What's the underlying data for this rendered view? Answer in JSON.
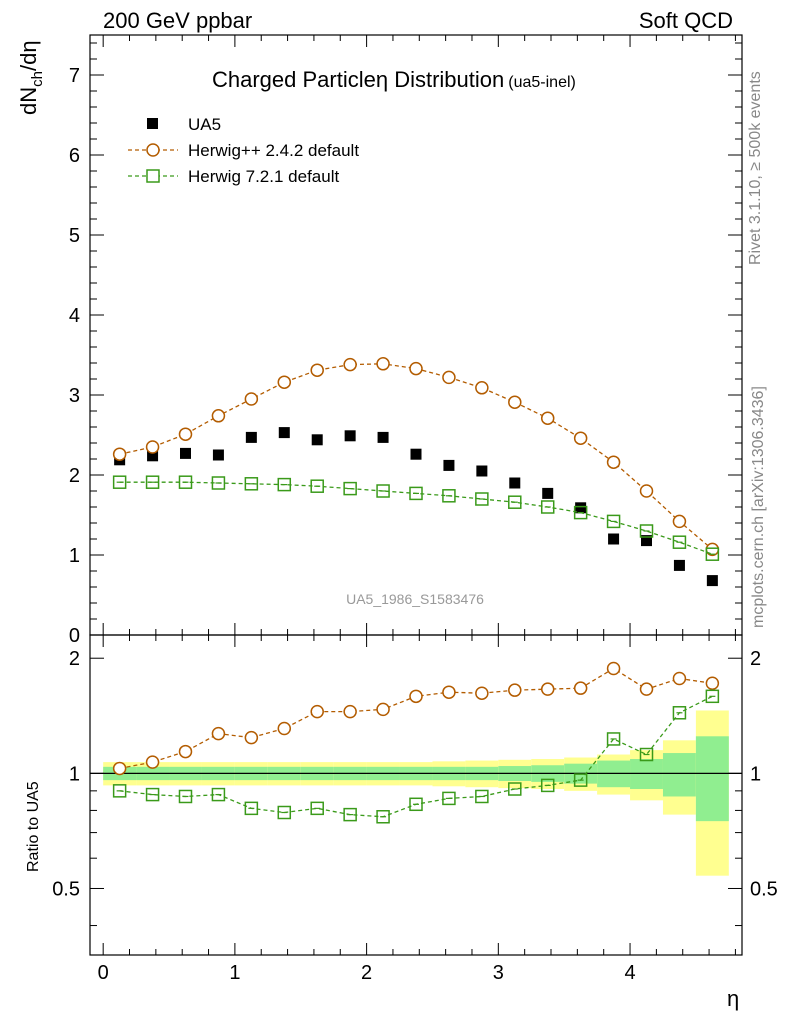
{
  "header": {
    "left": "200 GeV ppbar",
    "right": "Soft QCD"
  },
  "side_labels": {
    "rivet": "Rivet 3.1.10, ≥ 500k events",
    "mcplots": "mcplots.cern.ch [arXiv:1306.3436]"
  },
  "colors": {
    "data": "#000000",
    "herwigpp": "#b35c00",
    "herwig7": "#3a9a1a",
    "band_inner": "#90ee90",
    "band_outer": "#ffff90"
  },
  "chart_data": [
    {
      "type": "scatter",
      "title": "Charged Particleη Distribution",
      "subtitle": "(ua5-inel)",
      "ylabel": "dNch/dη",
      "ylabel_main": "dN",
      "ylabel_sub": "ch",
      "ylabel_tail": "/dη",
      "xlabel": "η",
      "annotation": "UA5_1986_S1583476",
      "xlim": [
        -0.1,
        4.85
      ],
      "ylim": [
        0,
        7.5
      ],
      "yticks": [
        0,
        1,
        2,
        3,
        4,
        5,
        6,
        7
      ],
      "x": [
        0.125,
        0.375,
        0.625,
        0.875,
        1.125,
        1.375,
        1.625,
        1.875,
        2.125,
        2.375,
        2.625,
        2.875,
        3.125,
        3.375,
        3.625,
        3.875,
        4.125,
        4.375,
        4.625
      ],
      "series": [
        {
          "name": "UA5",
          "marker": "filled-square",
          "values": [
            2.19,
            2.24,
            2.27,
            2.25,
            2.47,
            2.53,
            2.44,
            2.49,
            2.47,
            2.26,
            2.12,
            2.05,
            1.9,
            1.77,
            1.59,
            1.2,
            1.18,
            0.87,
            0.68
          ]
        },
        {
          "name": "Herwig++ 2.4.2 default",
          "marker": "open-circle",
          "values": [
            2.26,
            2.35,
            2.51,
            2.74,
            2.95,
            3.16,
            3.31,
            3.38,
            3.39,
            3.33,
            3.22,
            3.09,
            2.91,
            2.71,
            2.46,
            2.16,
            1.8,
            1.42,
            1.07
          ]
        },
        {
          "name": "Herwig 7.2.1 default",
          "marker": "open-square",
          "values": [
            1.91,
            1.91,
            1.91,
            1.9,
            1.89,
            1.88,
            1.86,
            1.83,
            1.8,
            1.77,
            1.74,
            1.7,
            1.66,
            1.6,
            1.53,
            1.42,
            1.3,
            1.16,
            1.01
          ]
        }
      ]
    },
    {
      "type": "line",
      "ylabel": "Ratio to UA5",
      "xlabel": "η",
      "xlim": [
        -0.1,
        4.85
      ],
      "ylim": [
        0.335,
        2.3
      ],
      "yticks": [
        0.5,
        1,
        2
      ],
      "ytick_labels": [
        "0.5",
        "1",
        "2"
      ],
      "xticks": [
        0,
        1,
        2,
        3,
        4
      ],
      "x": [
        0.125,
        0.375,
        0.625,
        0.875,
        1.125,
        1.375,
        1.625,
        1.875,
        2.125,
        2.375,
        2.625,
        2.875,
        3.125,
        3.375,
        3.625,
        3.875,
        4.125,
        4.375,
        4.625
      ],
      "band_inner": [
        0.04,
        0.04,
        0.04,
        0.04,
        0.04,
        0.04,
        0.04,
        0.04,
        0.04,
        0.04,
        0.04,
        0.04,
        0.045,
        0.05,
        0.06,
        0.08,
        0.09,
        0.13,
        0.25
      ],
      "band_outer": [
        0.07,
        0.07,
        0.07,
        0.07,
        0.07,
        0.07,
        0.07,
        0.07,
        0.07,
        0.07,
        0.075,
        0.08,
        0.085,
        0.09,
        0.1,
        0.12,
        0.15,
        0.22,
        0.46
      ],
      "series": [
        {
          "name": "Herwig++ 2.4.2 default",
          "marker": "open-circle",
          "values": [
            1.03,
            1.07,
            1.14,
            1.27,
            1.24,
            1.31,
            1.45,
            1.45,
            1.47,
            1.59,
            1.63,
            1.62,
            1.65,
            1.66,
            1.67,
            1.88,
            1.66,
            1.77,
            1.72
          ]
        },
        {
          "name": "Herwig 7.2.1 default",
          "marker": "open-square",
          "values": [
            0.9,
            0.88,
            0.87,
            0.88,
            0.81,
            0.79,
            0.81,
            0.78,
            0.77,
            0.83,
            0.86,
            0.87,
            0.91,
            0.93,
            0.96,
            1.23,
            1.12,
            1.44,
            1.59
          ]
        }
      ]
    }
  ]
}
